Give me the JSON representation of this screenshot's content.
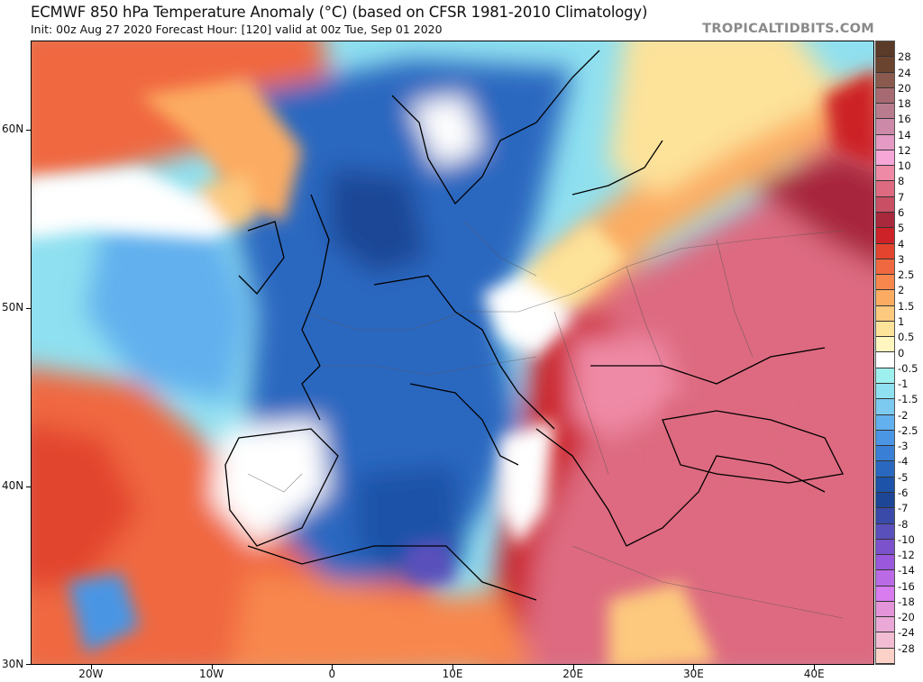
{
  "header": {
    "title": "ECMWF 850 hPa Temperature Anomaly (°C) (based on CFSR 1981-2010 Climatology)",
    "subtitle": "Init: 00z Aug 27 2020   Forecast Hour: [120]   valid at 00z Tue, Sep 01 2020",
    "brand": "TROPICALTIDBITS.COM"
  },
  "map": {
    "region": "Europe",
    "lon_range": [
      -25,
      45
    ],
    "lat_range": [
      30,
      65
    ],
    "lat_labels": [
      {
        "value": 60,
        "label": "60N"
      },
      {
        "value": 50,
        "label": "50N"
      },
      {
        "value": 40,
        "label": "40N"
      },
      {
        "value": 30,
        "label": "30N"
      }
    ],
    "lon_labels": [
      {
        "value": -20,
        "label": "20W"
      },
      {
        "value": -10,
        "label": "10W"
      },
      {
        "value": 0,
        "label": "0"
      },
      {
        "value": 10,
        "label": "10E"
      },
      {
        "value": 20,
        "label": "20E"
      },
      {
        "value": 30,
        "label": "30E"
      },
      {
        "value": 40,
        "label": "40E"
      }
    ]
  },
  "colorbar": {
    "labels": [
      "28",
      "24",
      "20",
      "18",
      "16",
      "14",
      "12",
      "10",
      "8",
      "7",
      "6",
      "5",
      "4",
      "3",
      "2.5",
      "2",
      "1.5",
      "1",
      "0.5",
      "0",
      "-0.5",
      "-1",
      "-1.5",
      "-2",
      "-2.5",
      "-3",
      "-4",
      "-5",
      "-6",
      "-7",
      "-8",
      "-10",
      "-12",
      "-14",
      "-16",
      "-18",
      "-20",
      "-24",
      "-28"
    ],
    "colors": [
      "#6b4430",
      "#8a5a4e",
      "#a86a72",
      "#b97c8e",
      "#cc8aa8",
      "#e49ac4",
      "#f7a6d8",
      "#ef8aa6",
      "#dd6a80",
      "#c94f65",
      "#a8283c",
      "#cc2228",
      "#e2442e",
      "#f0683f",
      "#f8874e",
      "#fcac62",
      "#fdc97e",
      "#fde29a",
      "#fff6c0",
      "#ffffff",
      "#9ef0ee",
      "#8fe0f0",
      "#7ccaf0",
      "#62b0ee",
      "#4a95e4",
      "#3a7fd6",
      "#2a68c0",
      "#1d53a8",
      "#1d4696",
      "#3a4aa8",
      "#5a50bc",
      "#7b52cc",
      "#9a58dc",
      "#bb6ae6",
      "#d87cf0",
      "#e494d8",
      "#eaa8d6",
      "#f2bcd2",
      "#fcd2c8"
    ]
  }
}
